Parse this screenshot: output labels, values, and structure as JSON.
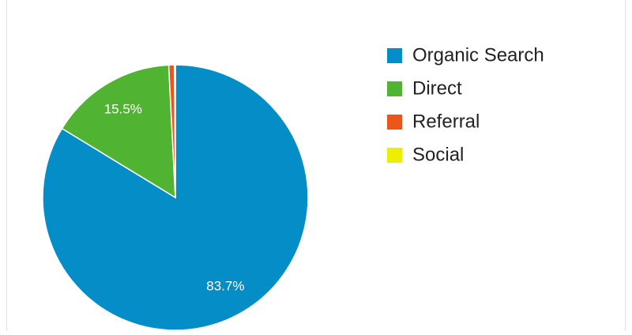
{
  "chart_data": {
    "type": "pie",
    "categories": [
      "Organic Search",
      "Direct",
      "Referral",
      "Social"
    ],
    "values": [
      83.7,
      15.5,
      0.7,
      0.1
    ],
    "value_labels": [
      "83.7%",
      "15.5%",
      null,
      null
    ],
    "colors": [
      "#058dc7",
      "#50b432",
      "#ed561b",
      "#edef00"
    ],
    "legend": "right"
  }
}
